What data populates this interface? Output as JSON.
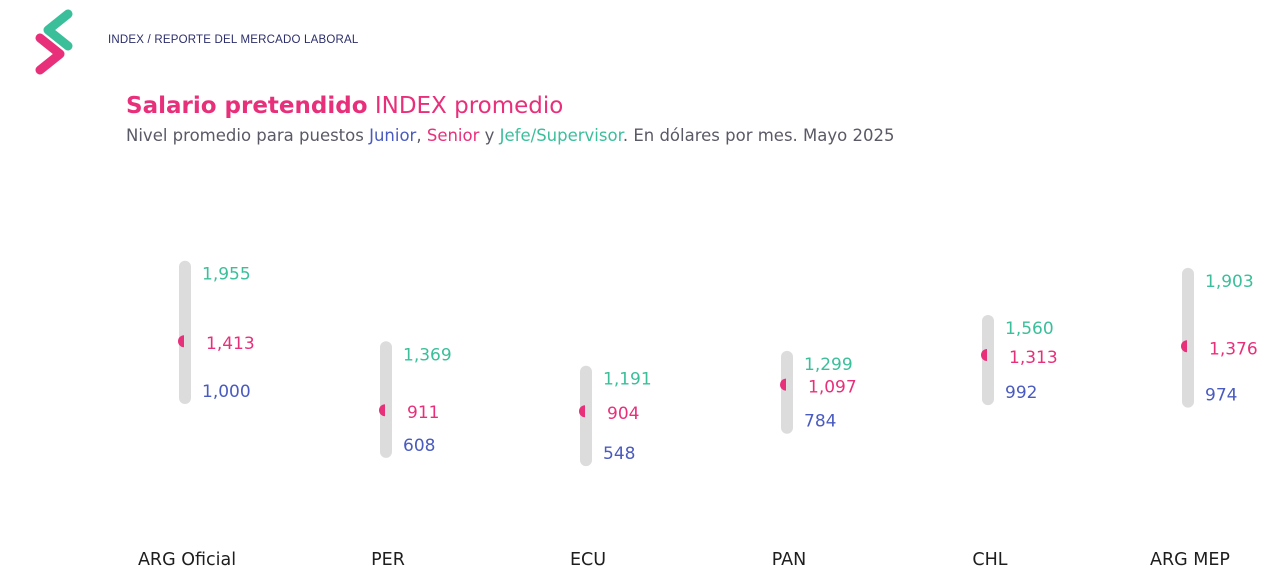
{
  "header": {
    "breadcrumb": "INDEX / REPORTE DEL MERCADO LABORAL"
  },
  "heading": {
    "title_bold": "Salario pretendido",
    "title_rest": " INDEX promedio",
    "subtitle_prefix": "Nivel promedio para puestos ",
    "subtitle_junior": "Junior",
    "subtitle_sep1": ", ",
    "subtitle_senior": "Senior",
    "subtitle_sep2": " y ",
    "subtitle_jefe": "Jefe/Supervisor",
    "subtitle_suffix": ". En dólares por mes. Mayo 2025"
  },
  "colors": {
    "junior": "#4a5bbf",
    "senior": "#e8307a",
    "jefe": "#3bbf9a",
    "range_bar": "#dcdcdc",
    "category_label": "#1e1e1e"
  },
  "logo_icon": "index-logo-icon",
  "chart_data": {
    "type": "range",
    "categories": [
      "ARG Oficial",
      "PER",
      "ECU",
      "PAN",
      "CHL",
      "ARG MEP"
    ],
    "series": [
      {
        "name": "Junior",
        "values": [
          1000,
          608,
          548,
          784,
          992,
          974
        ],
        "labels": [
          "1,000",
          "608",
          "548",
          "784",
          "992",
          "974"
        ]
      },
      {
        "name": "Senior",
        "values": [
          1413,
          911,
          904,
          1097,
          1313,
          1376
        ],
        "labels": [
          "1,413",
          "911",
          "904",
          "1,097",
          "1,313",
          "1,376"
        ]
      },
      {
        "name": "Jefe/Supervisor",
        "values": [
          1955,
          1369,
          1191,
          1299,
          1560,
          1903
        ],
        "labels": [
          "1,955",
          "1,369",
          "1,191",
          "1,299",
          "1,560",
          "1,903"
        ]
      }
    ]
  }
}
